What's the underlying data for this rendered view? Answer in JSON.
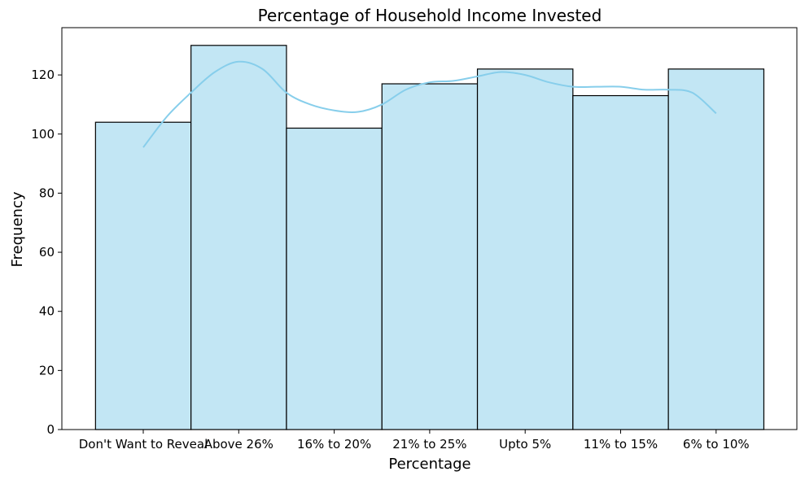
{
  "chart_data": {
    "type": "bar",
    "title": "Percentage of Household Income Invested",
    "xlabel": "Percentage",
    "ylabel": "Frequency",
    "categories": [
      "Don't Want to Reveal",
      "Above 26%",
      "16% to 20%",
      "21% to 25%",
      "Upto 5%",
      "11% to 15%",
      "6% to 10%"
    ],
    "values": [
      104,
      130,
      102,
      117,
      122,
      113,
      122
    ],
    "ylim": [
      0,
      136
    ],
    "yticks": [
      0,
      20,
      40,
      60,
      80,
      100,
      120
    ],
    "grid": false,
    "bar_color": "#c2e6f4",
    "kde_color": "#87ceeb",
    "kde_curve": {
      "x": [
        0,
        0.25,
        0.5,
        0.75,
        1,
        1.25,
        1.5,
        1.75,
        2,
        2.25,
        2.5,
        2.75,
        3,
        3.25,
        3.5,
        3.75,
        4,
        4.25,
        4.5,
        4.75,
        5,
        5.25,
        5.5,
        5.75,
        6
      ],
      "y": [
        95.5,
        106,
        114,
        121,
        124.5,
        122,
        114,
        110,
        108,
        107.5,
        110,
        115,
        117.5,
        118,
        119.5,
        121,
        120,
        117.5,
        116,
        116,
        116,
        115,
        115,
        114,
        107
      ]
    }
  }
}
